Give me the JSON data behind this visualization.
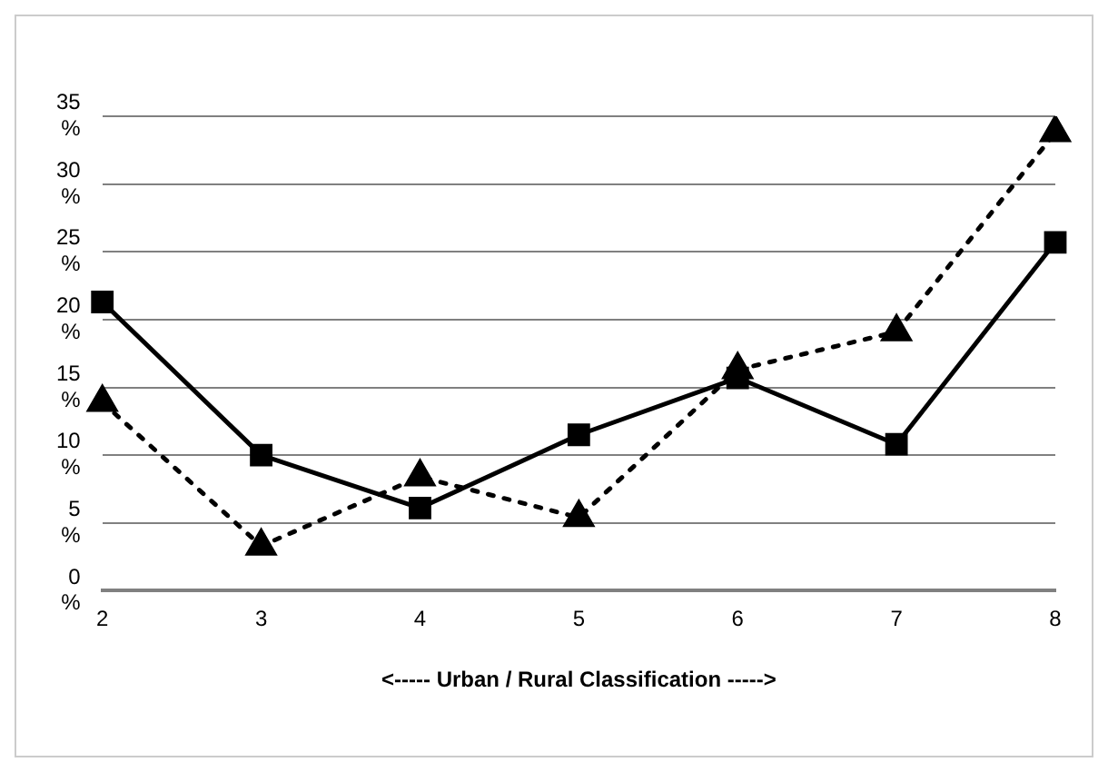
{
  "chart_data": {
    "type": "line",
    "xlabel": "<----- Urban / Rural Classification ----->",
    "categories": [
      "2",
      "3",
      "4",
      "5",
      "6",
      "7",
      "8"
    ],
    "series": [
      {
        "color": "#000000",
        "marker": "square",
        "line_style": "solid",
        "values": [
          21.3,
          10.0,
          6.1,
          11.5,
          15.7,
          10.8,
          25.7
        ]
      },
      {
        "color": "#000000",
        "marker": "triangle",
        "line_style": "dotted",
        "values": [
          13.9,
          3.3,
          8.4,
          5.4,
          16.3,
          19.1,
          33.8
        ]
      }
    ],
    "ylim": [
      0,
      35
    ],
    "yticks": [
      {
        "value": 0,
        "label": "0 %"
      },
      {
        "value": 5,
        "label": "5 %"
      },
      {
        "value": 10,
        "label": "10 %"
      },
      {
        "value": 15,
        "label": "15 %"
      },
      {
        "value": 20,
        "label": "20 %"
      },
      {
        "value": 25,
        "label": "25 %"
      },
      {
        "value": 30,
        "label": "30 %"
      },
      {
        "value": 35,
        "label": "35 %"
      }
    ],
    "grid": "y",
    "legend": false
  }
}
